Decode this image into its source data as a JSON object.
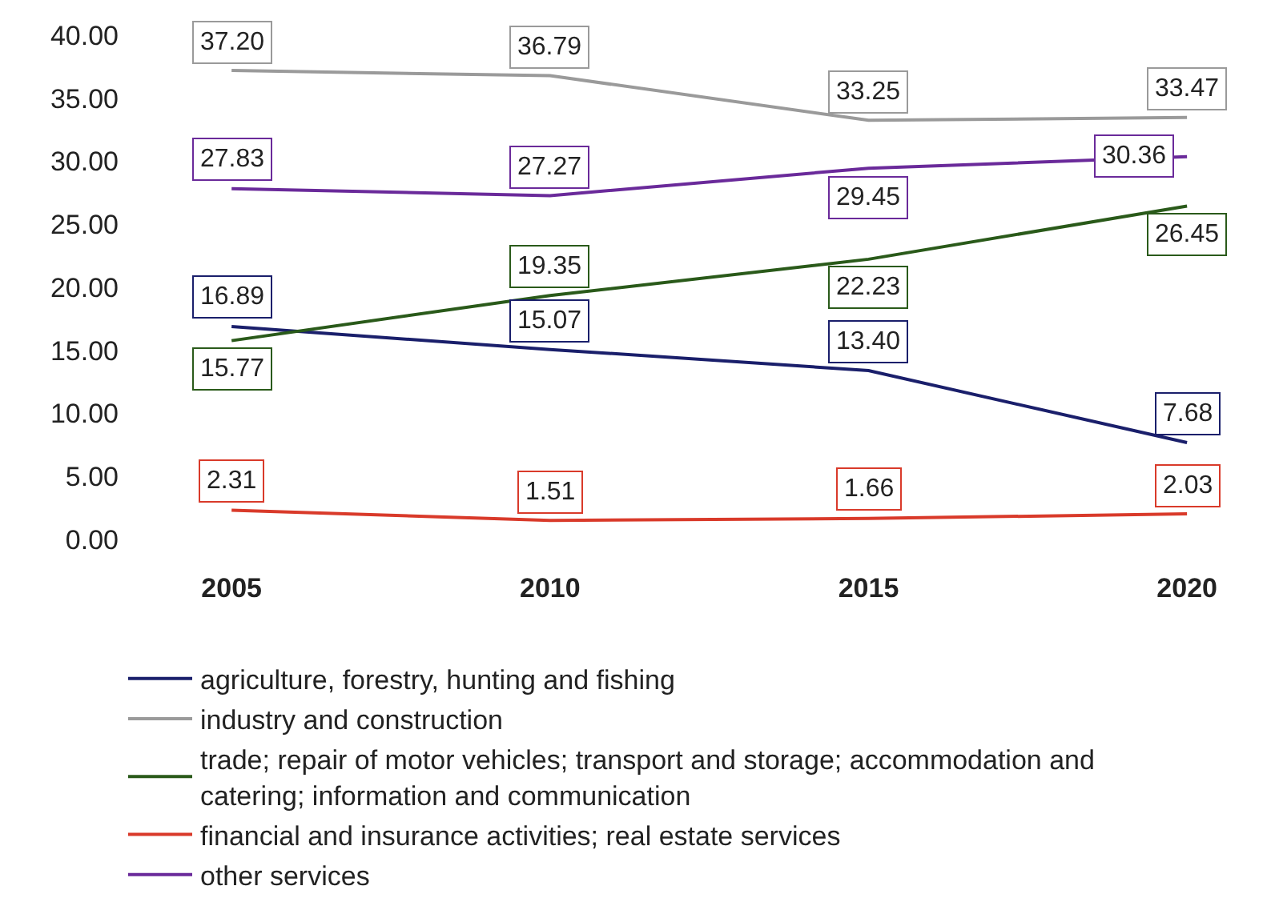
{
  "chart_data": {
    "type": "line",
    "categories": [
      "2005",
      "2010",
      "2015",
      "2020"
    ],
    "series": [
      {
        "name": "agriculture, forestry, hunting and fishing",
        "color": "#1a1f6b",
        "values": [
          16.89,
          15.07,
          13.4,
          7.68
        ],
        "value_labels": [
          "16.89",
          "15.07",
          "13.40",
          "7.68"
        ]
      },
      {
        "name": "industry and construction",
        "color": "#9a9a9a",
        "values": [
          37.2,
          36.79,
          33.25,
          33.47
        ],
        "value_labels": [
          "37.20",
          "36.79",
          "33.25",
          "33.47"
        ]
      },
      {
        "name": "trade; repair of motor vehicles; transport and storage; accommodation and catering; information and communication",
        "color": "#2a5a1a",
        "values": [
          15.77,
          19.35,
          22.23,
          26.45
        ],
        "value_labels": [
          "15.77",
          "19.35",
          "22.23",
          "26.45"
        ]
      },
      {
        "name": "financial and insurance activities; real estate services",
        "color": "#d93a2a",
        "values": [
          2.31,
          1.51,
          1.66,
          2.03
        ],
        "value_labels": [
          "2.31",
          "1.51",
          "1.66",
          "2.03"
        ]
      },
      {
        "name": "other services",
        "color": "#6a2a9a",
        "values": [
          27.83,
          27.27,
          29.45,
          30.36
        ],
        "value_labels": [
          "27.83",
          "27.27",
          "29.45",
          "30.36"
        ]
      }
    ],
    "ylim": [
      0,
      40
    ],
    "yticks": [
      {
        "value": 0,
        "label": "0.00"
      },
      {
        "value": 5,
        "label": "5.00"
      },
      {
        "value": 10,
        "label": "10.00"
      },
      {
        "value": 15,
        "label": "15.00"
      },
      {
        "value": 20,
        "label": "20.00"
      },
      {
        "value": 25,
        "label": "25.00"
      },
      {
        "value": 30,
        "label": "30.00"
      },
      {
        "value": 35,
        "label": "35.00"
      },
      {
        "value": 40,
        "label": "40.00"
      }
    ],
    "legend": "bottom",
    "line_style": "solid"
  }
}
